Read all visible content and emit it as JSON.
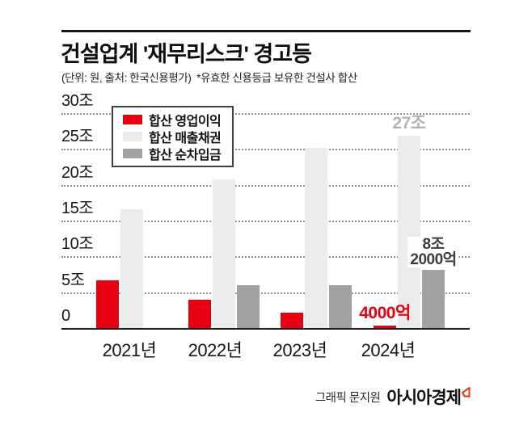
{
  "header": {
    "title": "건설업계 '재무리스크' 경고등",
    "subtitle": "(단위: 원, 출처: 한국신용평가)  *유효한 신용등급 보유한 건설사 합산"
  },
  "chart_data": {
    "type": "bar",
    "categories": [
      "2021년",
      "2022년",
      "2023년",
      "2024년"
    ],
    "series": [
      {
        "name": "합산 영업이익",
        "color": "#e60012",
        "values": [
          6.8,
          4.1,
          2.3,
          0.4
        ]
      },
      {
        "name": "합산 매출채권",
        "color": "#ebecec",
        "values": [
          16.7,
          20.9,
          25.3,
          27
        ]
      },
      {
        "name": "합산 순차입금",
        "color": "#a1a2a2",
        "values": [
          null,
          6.1,
          6.1,
          8.2
        ]
      }
    ],
    "unit": "조 원 (trillion KRW)",
    "ylim": [
      0,
      30
    ],
    "ytick_labels": [
      "0",
      "5조",
      "10조",
      "15조",
      "20조",
      "25조",
      "30조"
    ],
    "grid": "dotted horizontal",
    "legend_position": "top-left inside plot",
    "annotations": [
      {
        "series": 1,
        "group": 3,
        "text": "27조",
        "lines": [
          "27조"
        ],
        "color": "#b2b2b2",
        "bg": false,
        "bold": false
      },
      {
        "series": 2,
        "group": 3,
        "text": "8조 2000억",
        "lines": [
          "8조",
          "2000억"
        ],
        "color": "#3d3d3d",
        "bg": true,
        "bold": false
      },
      {
        "series": 0,
        "group": 3,
        "text": "4000억",
        "lines": [
          "4000억"
        ],
        "color": "#e60012",
        "bg": false,
        "bold": true
      }
    ]
  },
  "footer": {
    "credit": "그래픽 문지원",
    "brand": "아시아경제",
    "brand_mark_color": "#e8380d"
  }
}
